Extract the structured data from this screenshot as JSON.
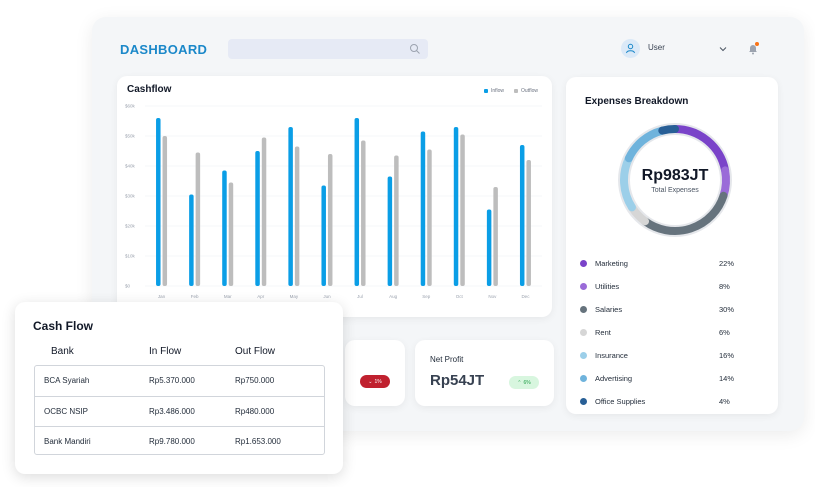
{
  "header": {
    "logo": "DASHBOARD",
    "search_placeholder": "",
    "user_name": "User"
  },
  "cashflow": {
    "title": "Cashflow",
    "legend": [
      {
        "name": "Inflow",
        "color": "#0a9ee6"
      },
      {
        "name": "Outflow",
        "color": "#bdbdbd"
      }
    ],
    "chart_data": {
      "type": "bar",
      "title": "Cashflow",
      "categories": [
        "Jan",
        "Feb",
        "Mar",
        "Apr",
        "May",
        "Jun",
        "Jul",
        "Aug",
        "Sep",
        "Oct",
        "Nov",
        "Dec"
      ],
      "y_ticks": [
        "$0",
        "$10k",
        "$20k",
        "$30k",
        "$40k",
        "$50k",
        "$60k"
      ],
      "ylim": [
        0,
        60000
      ],
      "grid": true,
      "legend_position": "top-right",
      "series": [
        {
          "name": "Inflow",
          "color": "#0a9ee6",
          "values": [
            56000,
            30500,
            38500,
            45000,
            53000,
            33500,
            56000,
            36500,
            51500,
            53000,
            25500,
            47000
          ]
        },
        {
          "name": "Outflow",
          "color": "#bdbdbd",
          "values": [
            50000,
            44500,
            34500,
            49500,
            46500,
            44000,
            48500,
            43500,
            45500,
            50500,
            33000,
            42000
          ]
        }
      ]
    }
  },
  "expenses": {
    "title": "Expenses Breakdown",
    "total_value": "Rp983JT",
    "total_label": "Total Expenses",
    "items": [
      {
        "name": "Marketing",
        "pct": "22%",
        "value": 22,
        "color": "#7a43c9"
      },
      {
        "name": "Utilities",
        "pct": "8%",
        "value": 8,
        "color": "#9a6bd8"
      },
      {
        "name": "Salaries",
        "pct": "30%",
        "value": 30,
        "color": "#66737d"
      },
      {
        "name": "Rent",
        "pct": "6%",
        "value": 6,
        "color": "#d6d6d6"
      },
      {
        "name": "Insurance",
        "pct": "16%",
        "value": 16,
        "color": "#9ccfe9"
      },
      {
        "name": "Advertising",
        "pct": "14%",
        "value": 14,
        "color": "#6fb3dc"
      },
      {
        "name": "Office Supplies",
        "pct": "4%",
        "value": 4,
        "color": "#285f96"
      }
    ]
  },
  "loss_card": {
    "badge_text": "1%",
    "badge_color": "#c0212f"
  },
  "profit_card": {
    "label": "Net Profit",
    "value": "Rp54JT",
    "badge_text": "6%",
    "badge_color": "#1e9e46"
  },
  "cash_flow_table": {
    "title": "Cash Flow",
    "columns": [
      "Bank",
      "In Flow",
      "Out Flow"
    ],
    "rows": [
      [
        "BCA Syariah",
        "Rp5.370.000",
        "Rp750.000"
      ],
      [
        "OCBC NSIP",
        "Rp3.486.000",
        "Rp480.000"
      ],
      [
        "Bank Mandiri",
        "Rp9.780.000",
        "Rp1.653.000"
      ]
    ]
  }
}
